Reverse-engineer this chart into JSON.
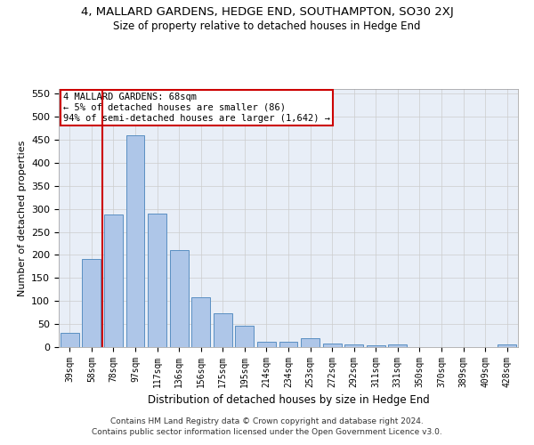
{
  "title": "4, MALLARD GARDENS, HEDGE END, SOUTHAMPTON, SO30 2XJ",
  "subtitle": "Size of property relative to detached houses in Hedge End",
  "xlabel": "Distribution of detached houses by size in Hedge End",
  "ylabel": "Number of detached properties",
  "categories": [
    "39sqm",
    "58sqm",
    "78sqm",
    "97sqm",
    "117sqm",
    "136sqm",
    "156sqm",
    "175sqm",
    "195sqm",
    "214sqm",
    "234sqm",
    "253sqm",
    "272sqm",
    "292sqm",
    "311sqm",
    "331sqm",
    "350sqm",
    "370sqm",
    "389sqm",
    "409sqm",
    "428sqm"
  ],
  "values": [
    30,
    192,
    288,
    460,
    290,
    211,
    109,
    74,
    46,
    12,
    11,
    20,
    8,
    6,
    4,
    5,
    0,
    0,
    0,
    0,
    5
  ],
  "bar_color": "#aec6e8",
  "bar_edge_color": "#5a8fc2",
  "vline_color": "#cc0000",
  "annotation_text": "4 MALLARD GARDENS: 68sqm\n← 5% of detached houses are smaller (86)\n94% of semi-detached houses are larger (1,642) →",
  "annotation_box_color": "#ffffff",
  "annotation_box_edge_color": "#cc0000",
  "ylim": [
    0,
    560
  ],
  "yticks": [
    0,
    50,
    100,
    150,
    200,
    250,
    300,
    350,
    400,
    450,
    500,
    550
  ],
  "grid_color": "#cccccc",
  "bg_color": "#e8eef7",
  "footer": "Contains HM Land Registry data © Crown copyright and database right 2024.\nContains public sector information licensed under the Open Government Licence v3.0."
}
